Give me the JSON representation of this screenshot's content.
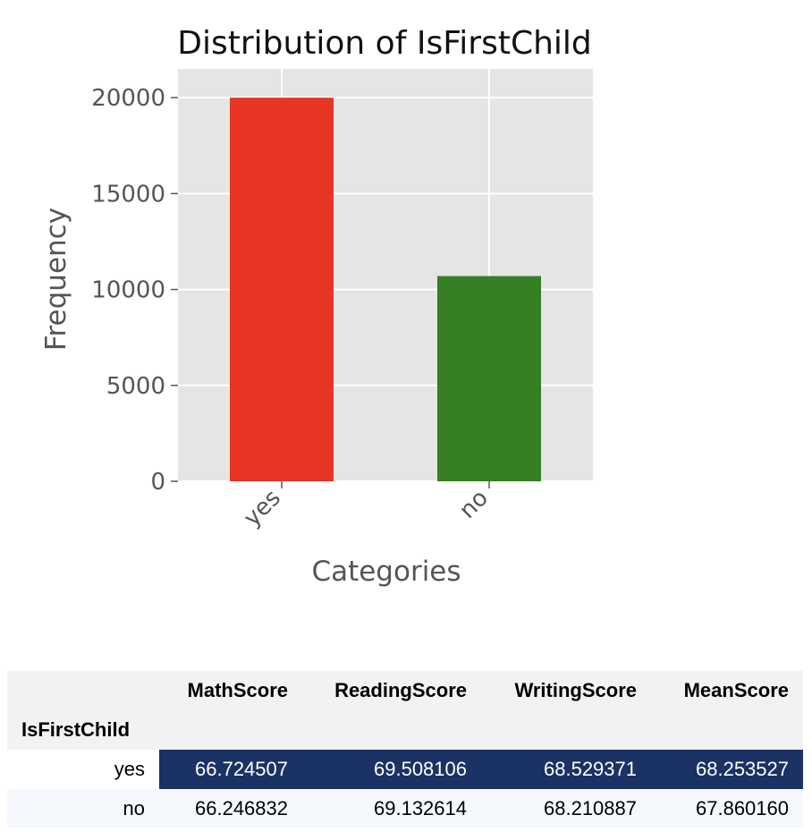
{
  "chart_data": {
    "type": "bar",
    "title": "Distribution of IsFirstChild",
    "xlabel": "Categories",
    "ylabel": "Frequency",
    "categories": [
      "yes",
      "no"
    ],
    "values": [
      20000,
      10700
    ],
    "colors": [
      "#e83523",
      "#367f22"
    ],
    "ylim": [
      0,
      21500
    ],
    "yticks": [
      0,
      5000,
      10000,
      15000,
      20000
    ],
    "grid": true,
    "style": "ggplot",
    "plot_background": "#e5e5e5"
  },
  "table": {
    "columns": [
      "MathScore",
      "ReadingScore",
      "WritingScore",
      "MeanScore"
    ],
    "index_name": "IsFirstChild",
    "rows": [
      {
        "label": "yes",
        "values": [
          "66.724507",
          "69.508106",
          "68.529371",
          "68.253527"
        ]
      },
      {
        "label": "no",
        "values": [
          "66.246832",
          "69.132614",
          "68.210887",
          "67.860160"
        ]
      }
    ],
    "highlight_color": "#1b3264"
  }
}
